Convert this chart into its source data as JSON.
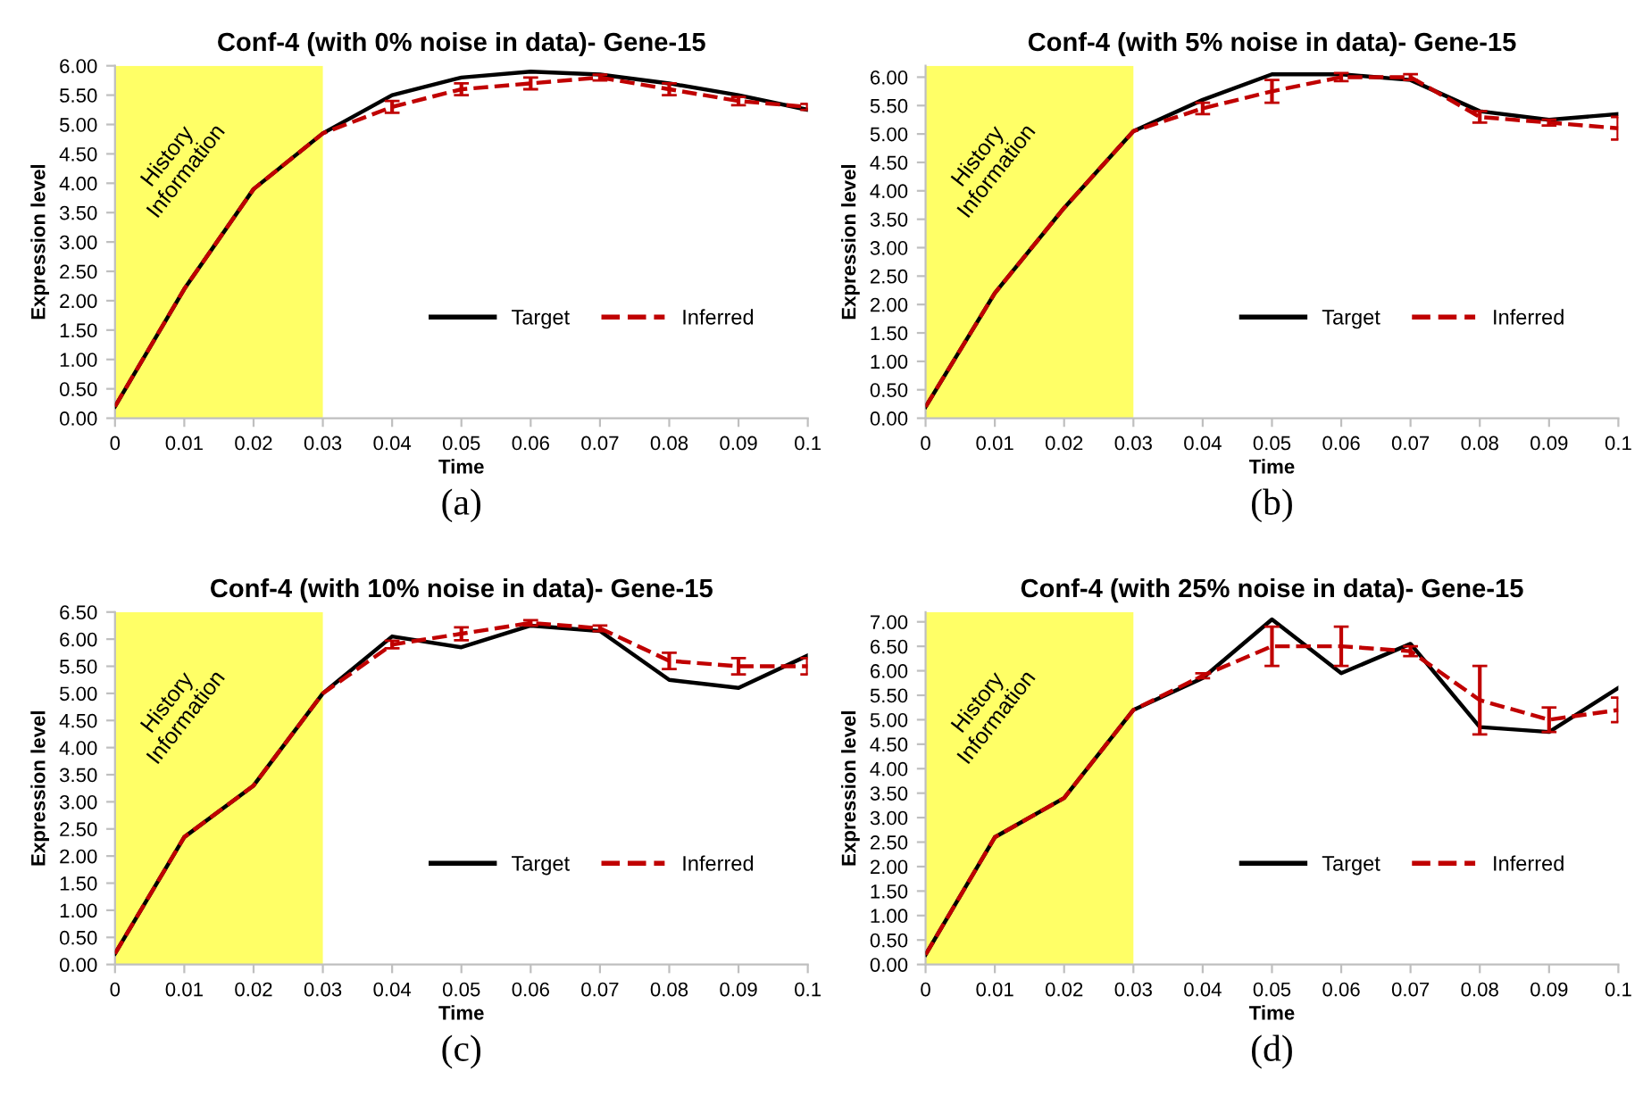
{
  "chart_data": [
    {
      "type": "line",
      "title": "Conf-4 (with 0% noise in data)- Gene-15",
      "xlabel": "Time",
      "ylabel": "Expression level",
      "annotations": [
        "(a)"
      ],
      "x": [
        0,
        0.01,
        0.02,
        0.03,
        0.04,
        0.05,
        0.06,
        0.07,
        0.08,
        0.09,
        0.1
      ],
      "xlim": [
        0,
        0.1
      ],
      "xticks": [
        0,
        0.01,
        0.02,
        0.03,
        0.04,
        0.05,
        0.06,
        0.07,
        0.08,
        0.09,
        0.1
      ],
      "ylim": [
        0,
        6.0
      ],
      "yticks": [
        {
          "value": 0,
          "label": "0.00"
        },
        {
          "value": 0.5,
          "label": "0.50"
        },
        {
          "value": 1,
          "label": "1.00"
        },
        {
          "value": 1.5,
          "label": "1.50"
        },
        {
          "value": 2,
          "label": "2.00"
        },
        {
          "value": 2.5,
          "label": "2.50"
        },
        {
          "value": 3,
          "label": "3.00"
        },
        {
          "value": 3.5,
          "label": "3.50"
        },
        {
          "value": 4,
          "label": "4.00"
        },
        {
          "value": 4.5,
          "label": "4.50"
        },
        {
          "value": 5,
          "label": "5.00"
        },
        {
          "value": 5.5,
          "label": "5.50"
        },
        {
          "value": 6,
          "label": "6.00"
        }
      ],
      "grid": false,
      "legend": "bottom right",
      "marker": "none",
      "bands": [
        {
          "axis": "x",
          "from": 0,
          "to": 0.03,
          "label": "History\nInformation",
          "color": "#ffff66"
        }
      ],
      "series": [
        {
          "name": "Target",
          "color": "#000000",
          "line_style": "solid",
          "values": [
            0.2,
            2.2,
            3.9,
            4.85,
            5.5,
            5.8,
            5.9,
            5.85,
            5.7,
            5.5,
            5.25
          ]
        },
        {
          "name": "Inferred",
          "color": "#c00000",
          "line_style": "dashed",
          "values": [
            0.2,
            2.2,
            3.9,
            4.85,
            5.3,
            5.6,
            5.7,
            5.8,
            5.6,
            5.4,
            5.3
          ],
          "errors": [
            null,
            null,
            null,
            null,
            0.1,
            0.1,
            0.1,
            0.05,
            0.1,
            0.07,
            0.05
          ]
        }
      ]
    },
    {
      "type": "line",
      "title": "Conf-4 (with 5% noise in data)- Gene-15",
      "xlabel": "Time",
      "ylabel": "Expression level",
      "annotations": [
        "(b)"
      ],
      "x": [
        0,
        0.01,
        0.02,
        0.03,
        0.04,
        0.05,
        0.06,
        0.07,
        0.08,
        0.09,
        0.1
      ],
      "xlim": [
        0,
        0.1
      ],
      "xticks": [
        0,
        0.01,
        0.02,
        0.03,
        0.04,
        0.05,
        0.06,
        0.07,
        0.08,
        0.09,
        0.1
      ],
      "ylim": [
        0,
        6.2
      ],
      "yticks": [
        {
          "value": 0,
          "label": "0.00"
        },
        {
          "value": 0.5,
          "label": "0.50"
        },
        {
          "value": 1,
          "label": "1.00"
        },
        {
          "value": 1.5,
          "label": "1.50"
        },
        {
          "value": 2,
          "label": "2.00"
        },
        {
          "value": 2.5,
          "label": "2.50"
        },
        {
          "value": 3,
          "label": "3.00"
        },
        {
          "value": 3.5,
          "label": "3.50"
        },
        {
          "value": 4,
          "label": "4.00"
        },
        {
          "value": 4.5,
          "label": "4.50"
        },
        {
          "value": 5,
          "label": "5.00"
        },
        {
          "value": 5.5,
          "label": "5.50"
        },
        {
          "value": 6,
          "label": "6.00"
        }
      ],
      "grid": false,
      "legend": "bottom right",
      "marker": "none",
      "bands": [
        {
          "axis": "x",
          "from": 0,
          "to": 0.03,
          "label": "History\nInformation",
          "color": "#ffff66"
        }
      ],
      "series": [
        {
          "name": "Target",
          "color": "#000000",
          "line_style": "solid",
          "values": [
            0.2,
            2.2,
            3.7,
            5.05,
            5.6,
            6.05,
            6.05,
            5.95,
            5.4,
            5.25,
            5.35
          ]
        },
        {
          "name": "Inferred",
          "color": "#c00000",
          "line_style": "dashed",
          "values": [
            0.2,
            2.2,
            3.7,
            5.05,
            5.45,
            5.75,
            6.0,
            6.0,
            5.3,
            5.2,
            5.1
          ],
          "errors": [
            null,
            null,
            null,
            null,
            0.1,
            0.2,
            0.07,
            0.05,
            0.1,
            0.05,
            0.2
          ]
        }
      ]
    },
    {
      "type": "line",
      "title": "Conf-4 (with 10% noise in data)- Gene-15",
      "xlabel": "Time",
      "ylabel": "Expression level",
      "annotations": [
        "(c)"
      ],
      "x": [
        0,
        0.01,
        0.02,
        0.03,
        0.04,
        0.05,
        0.06,
        0.07,
        0.08,
        0.09,
        0.1
      ],
      "xlim": [
        0,
        0.1
      ],
      "xticks": [
        0,
        0.01,
        0.02,
        0.03,
        0.04,
        0.05,
        0.06,
        0.07,
        0.08,
        0.09,
        0.1
      ],
      "ylim": [
        0,
        6.5
      ],
      "yticks": [
        {
          "value": 0,
          "label": "0.00"
        },
        {
          "value": 0.5,
          "label": "0.50"
        },
        {
          "value": 1,
          "label": "1.00"
        },
        {
          "value": 1.5,
          "label": "1.50"
        },
        {
          "value": 2,
          "label": "2.00"
        },
        {
          "value": 2.5,
          "label": "2.50"
        },
        {
          "value": 3,
          "label": "3.00"
        },
        {
          "value": 3.5,
          "label": "3.50"
        },
        {
          "value": 4,
          "label": "4.00"
        },
        {
          "value": 4.5,
          "label": "4.50"
        },
        {
          "value": 5,
          "label": "5.00"
        },
        {
          "value": 5.5,
          "label": "5.50"
        },
        {
          "value": 6,
          "label": "6.00"
        },
        {
          "value": 6.5,
          "label": "6.50"
        }
      ],
      "grid": false,
      "legend": "bottom right",
      "marker": "none",
      "bands": [
        {
          "axis": "x",
          "from": 0,
          "to": 0.03,
          "label": "History\nInformation",
          "color": "#ffff66"
        }
      ],
      "series": [
        {
          "name": "Target",
          "color": "#000000",
          "line_style": "solid",
          "values": [
            0.2,
            2.35,
            3.3,
            5.0,
            6.05,
            5.85,
            6.25,
            6.15,
            5.25,
            5.1,
            5.7
          ]
        },
        {
          "name": "Inferred",
          "color": "#c00000",
          "line_style": "dashed",
          "values": [
            0.2,
            2.35,
            3.3,
            5.0,
            5.9,
            6.1,
            6.3,
            6.2,
            5.6,
            5.5,
            5.5
          ],
          "errors": [
            null,
            null,
            null,
            null,
            0.07,
            0.12,
            0.05,
            0.05,
            0.15,
            0.15,
            0.15
          ]
        }
      ]
    },
    {
      "type": "line",
      "title": "Conf-4 (with 25% noise in data)- Gene-15",
      "xlabel": "Time",
      "ylabel": "Expression level",
      "annotations": [
        "(d)"
      ],
      "x": [
        0,
        0.01,
        0.02,
        0.03,
        0.04,
        0.05,
        0.06,
        0.07,
        0.08,
        0.09,
        0.1
      ],
      "xlim": [
        0,
        0.1
      ],
      "xticks": [
        0,
        0.01,
        0.02,
        0.03,
        0.04,
        0.05,
        0.06,
        0.07,
        0.08,
        0.09,
        0.1
      ],
      "ylim": [
        0,
        7.2
      ],
      "yticks": [
        {
          "value": 0,
          "label": "0.00"
        },
        {
          "value": 0.5,
          "label": "0.50"
        },
        {
          "value": 1,
          "label": "1.00"
        },
        {
          "value": 1.5,
          "label": "1.50"
        },
        {
          "value": 2,
          "label": "2.00"
        },
        {
          "value": 2.5,
          "label": "2.50"
        },
        {
          "value": 3,
          "label": "3.00"
        },
        {
          "value": 3.5,
          "label": "3.50"
        },
        {
          "value": 4,
          "label": "4.00"
        },
        {
          "value": 4.5,
          "label": "4.50"
        },
        {
          "value": 5,
          "label": "5.00"
        },
        {
          "value": 5.5,
          "label": "5.50"
        },
        {
          "value": 6,
          "label": "6.00"
        },
        {
          "value": 6.5,
          "label": "6.50"
        },
        {
          "value": 7,
          "label": "7.00"
        }
      ],
      "grid": false,
      "legend": "bottom right",
      "marker": "none",
      "bands": [
        {
          "axis": "x",
          "from": 0,
          "to": 0.03,
          "label": "History\nInformation",
          "color": "#ffff66"
        }
      ],
      "series": [
        {
          "name": "Target",
          "color": "#000000",
          "line_style": "solid",
          "values": [
            0.2,
            2.6,
            3.4,
            5.2,
            5.85,
            7.05,
            5.95,
            6.55,
            4.85,
            4.75,
            5.65
          ]
        },
        {
          "name": "Inferred",
          "color": "#c00000",
          "line_style": "dashed",
          "values": [
            0.2,
            2.6,
            3.4,
            5.2,
            5.9,
            6.5,
            6.5,
            6.4,
            5.4,
            5.0,
            5.2
          ],
          "errors": [
            null,
            null,
            null,
            null,
            0.05,
            0.4,
            0.4,
            0.1,
            0.7,
            0.25,
            0.25
          ]
        }
      ]
    }
  ]
}
